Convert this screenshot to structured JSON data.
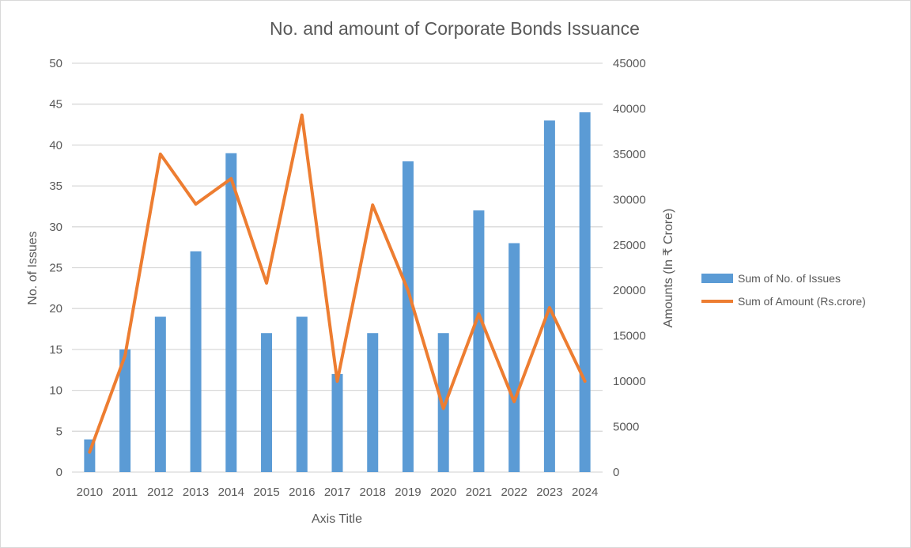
{
  "chart_data": {
    "type": "bar+line",
    "title": "No. and amount of Corporate Bonds Issuance",
    "xlabel": "Axis Title",
    "ylabel": "No. of Issues",
    "y2label": "Amounts (In ₹ Crore)",
    "ylim": [
      0,
      50
    ],
    "y2lim": [
      0,
      45000
    ],
    "yticks": [
      0,
      5,
      10,
      15,
      20,
      25,
      30,
      35,
      40,
      45,
      50
    ],
    "y2ticks": [
      0,
      5000,
      10000,
      15000,
      20000,
      25000,
      30000,
      35000,
      40000,
      45000
    ],
    "grid": true,
    "legend_position": "right",
    "categories": [
      "2010",
      "2011",
      "2012",
      "2013",
      "2014",
      "2015",
      "2016",
      "2017",
      "2018",
      "2019",
      "2020",
      "2021",
      "2022",
      "2023",
      "2024"
    ],
    "series": [
      {
        "name": "Sum of No. of Issues",
        "type": "bar",
        "axis": "left",
        "color": "#5b9bd5",
        "values": [
          4,
          15,
          19,
          27,
          39,
          17,
          19,
          12,
          17,
          38,
          17,
          32,
          28,
          43,
          44
        ]
      },
      {
        "name": "Sum of Amount (Rs.crore)",
        "type": "line",
        "axis": "right",
        "color": "#ed7d31",
        "values": [
          2200,
          12800,
          35000,
          29500,
          32300,
          20800,
          39300,
          10000,
          29400,
          20000,
          7000,
          17400,
          7750,
          18100,
          10000
        ]
      }
    ]
  }
}
